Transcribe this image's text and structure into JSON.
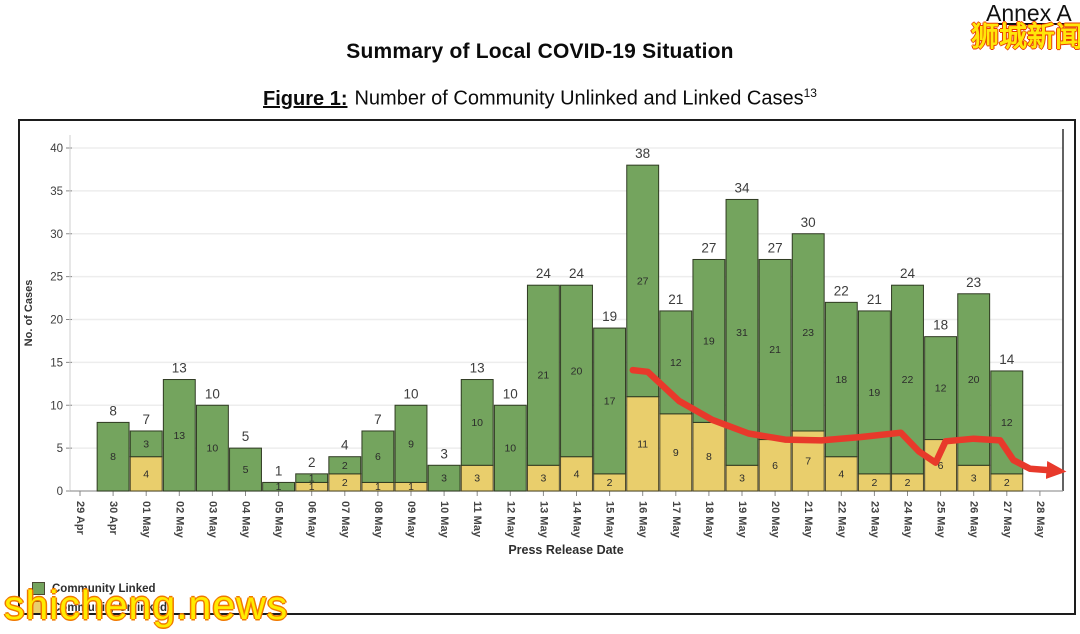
{
  "page": {
    "annex_label": "Annex A",
    "watermark_cn": "狮城新闻",
    "watermark_bottom": "shicheng.news",
    "title": "Summary of Local COVID-19 Situation",
    "figure_label": "Figure 1:",
    "figure_text": "Number of Community Unlinked and Linked Cases",
    "figure_superscript": "13"
  },
  "chart_data": {
    "type": "bar",
    "stacked": true,
    "title": "",
    "xlabel": "Press Release Date",
    "ylabel": "No. of Cases",
    "ylim": [
      0,
      40
    ],
    "yticks": [
      0,
      5,
      10,
      15,
      20,
      25,
      30,
      35,
      40
    ],
    "grid": true,
    "legend_position": "bottom-left",
    "categories": [
      "29 Apr",
      "30 Apr",
      "01 May",
      "02 May",
      "03 May",
      "04 May",
      "05 May",
      "06 May",
      "07 May",
      "08 May",
      "09 May",
      "10 May",
      "11 May",
      "12 May",
      "13 May",
      "14 May",
      "15 May",
      "16 May",
      "17 May",
      "18 May",
      "19 May",
      "20 May",
      "21 May",
      "22 May",
      "23 May",
      "24 May",
      "25 May",
      "26 May",
      "27 May",
      "28 May"
    ],
    "series": [
      {
        "name": "Community Linked",
        "color": "#74a45e",
        "border_color": "#2f3a22",
        "values": [
          0,
          8,
          3,
          13,
          10,
          5,
          1,
          1,
          2,
          6,
          9,
          3,
          10,
          10,
          21,
          20,
          17,
          27,
          12,
          19,
          31,
          21,
          23,
          18,
          19,
          22,
          12,
          20,
          12,
          0
        ]
      },
      {
        "name": "Community Unlinked",
        "color": "#e9ce6c",
        "border_color": "#4a4526",
        "values": [
          0,
          0,
          4,
          0,
          0,
          0,
          0,
          1,
          2,
          1,
          1,
          0,
          3,
          0,
          3,
          4,
          2,
          11,
          9,
          8,
          3,
          6,
          7,
          4,
          2,
          2,
          6,
          3,
          2,
          0
        ]
      }
    ],
    "totals": [
      0,
      8,
      7,
      13,
      10,
      5,
      1,
      2,
      4,
      7,
      10,
      3,
      13,
      10,
      24,
      24,
      19,
      38,
      21,
      27,
      34,
      27,
      30,
      22,
      21,
      24,
      18,
      23,
      14,
      0
    ],
    "trend_arrow": {
      "color": "#e8392b",
      "description": "hand-drawn red arrow showing declining trend from 16 May to 28 May",
      "points": [
        [
          16.7,
          14.1
        ],
        [
          17.15,
          13.9
        ],
        [
          18.1,
          10.5
        ],
        [
          19.1,
          8.3
        ],
        [
          20.2,
          6.7
        ],
        [
          21.3,
          6.0
        ],
        [
          22.4,
          5.9
        ],
        [
          23.6,
          6.3
        ],
        [
          24.8,
          6.8
        ],
        [
          25.35,
          4.6
        ],
        [
          25.85,
          3.3
        ],
        [
          26.15,
          5.8
        ],
        [
          27.0,
          6.1
        ],
        [
          27.8,
          5.9
        ],
        [
          28.2,
          3.6
        ],
        [
          28.7,
          2.6
        ],
        [
          29.35,
          2.4
        ]
      ]
    }
  }
}
